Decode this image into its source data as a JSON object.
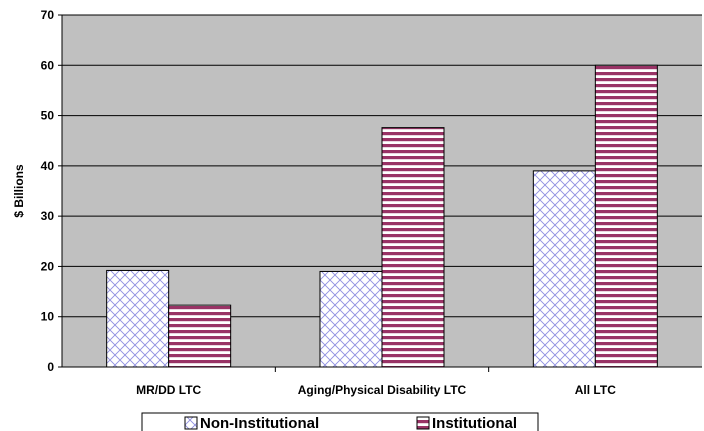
{
  "chart_data": {
    "type": "bar",
    "title": "",
    "xlabel": "",
    "ylabel": "$ Billions",
    "ylim": [
      0,
      70
    ],
    "yticks": [
      "0",
      "10",
      "20",
      "30",
      "40",
      "50",
      "60",
      "70"
    ],
    "grid": true,
    "legend_position": "bottom",
    "categories": [
      "MR/DD LTC",
      "Aging/Physical Disability LTC",
      "All LTC"
    ],
    "series": [
      {
        "name": "Non-Institutional",
        "values": [
          19.2,
          19.0,
          39.0
        ],
        "color": "#ccccff",
        "pattern": "crosshatch"
      },
      {
        "name": "Institutional",
        "values": [
          12.3,
          47.6,
          60.0
        ],
        "color": "#993366",
        "pattern": "horizontal-stripes"
      }
    ],
    "plot_background": "#c0c0c0"
  }
}
